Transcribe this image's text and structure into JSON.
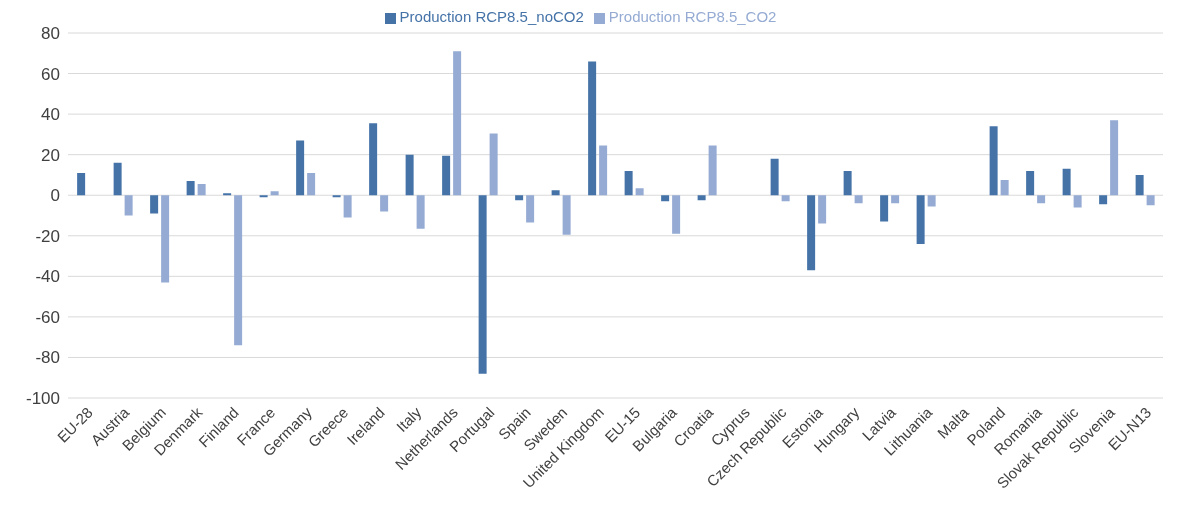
{
  "chart_data": {
    "type": "bar",
    "categories": [
      "EU-28",
      "Austria",
      "Belgium",
      "Denmark",
      "Finland",
      "France",
      "Germany",
      "Greece",
      "Ireland",
      "Italy",
      "Netherlands",
      "Portugal",
      "Spain",
      "Sweden",
      "United Kingdom",
      "EU-15",
      "Bulgaria",
      "Croatia",
      "Cyprus",
      "Czech Republic",
      "Estonia",
      "Hungary",
      "Latvia",
      "Lithuania",
      "Malta",
      "Poland",
      "Romania",
      "Slovak Republic",
      "Slovenia",
      "EU-N13"
    ],
    "series": [
      {
        "name": "Production RCP8.5_noCO2",
        "color": "#4573a8",
        "values": [
          11,
          16,
          -9,
          7,
          1,
          -1,
          27,
          -1,
          35.5,
          20,
          19.5,
          -88,
          -2.5,
          2.5,
          66,
          12,
          -3,
          -2.5,
          null,
          18,
          -37,
          12,
          -13,
          -24,
          null,
          34,
          12,
          13,
          -4.5,
          10
        ]
      },
      {
        "name": "Production RCP8.5_CO2",
        "color": "#95abd3",
        "values": [
          null,
          -10,
          -43,
          5.5,
          -74,
          2,
          11,
          -11,
          -8,
          -16.5,
          71,
          30.5,
          -13.5,
          -19.5,
          24.5,
          3.5,
          -19,
          24.5,
          null,
          -3,
          -14,
          -4,
          -4,
          -5.5,
          null,
          7.5,
          -4,
          -6,
          37,
          -5
        ]
      }
    ],
    "ylim": [
      -100,
      80
    ],
    "yticks": [
      -100,
      -80,
      -60,
      -40,
      -20,
      0,
      20,
      40,
      60,
      80
    ],
    "grid": "y",
    "legend": "top"
  }
}
